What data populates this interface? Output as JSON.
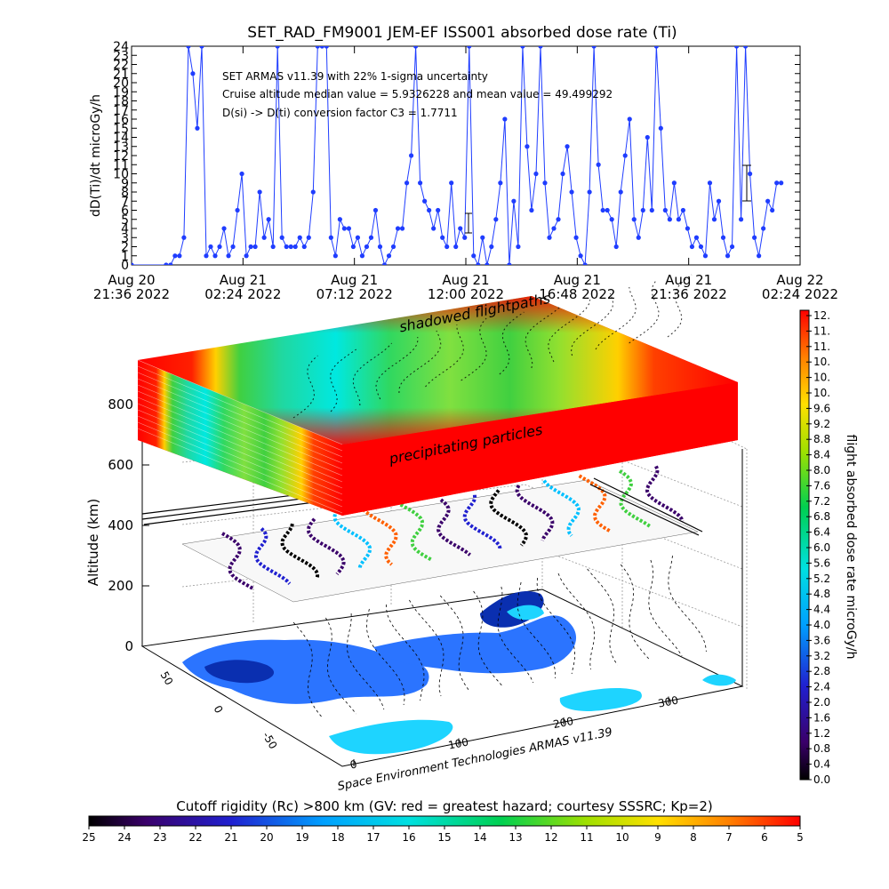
{
  "chart_data": [
    {
      "type": "line",
      "title": "SET_RAD_FM9001  JEM-EF ISS001 absorbed dose rate (Ti)",
      "ylabel": "dD(Ti)/dt microGy/h",
      "ylim": [
        0,
        24
      ],
      "yticks": [
        "0",
        "1",
        "2",
        "3",
        "4",
        "5",
        "6",
        "7",
        "8",
        "9",
        "10",
        "11",
        "12",
        "13",
        "14",
        "15",
        "16",
        "17",
        "18",
        "19",
        "20",
        "21",
        "22",
        "23",
        "24"
      ],
      "xticks": [
        {
          "line1": "Aug 20",
          "line2": "21:36 2022"
        },
        {
          "line1": "Aug 21",
          "line2": "02:24 2022"
        },
        {
          "line1": "Aug 21",
          "line2": "07:12 2022"
        },
        {
          "line1": "Aug 21",
          "line2": "12:00 2022"
        },
        {
          "line1": "Aug 21",
          "line2": "16:48 2022"
        },
        {
          "line1": "Aug 21",
          "line2": "21:36 2022"
        },
        {
          "line1": "Aug 22",
          "line2": "02:24 2022"
        }
      ],
      "annotations": [
        "SET ARMAS v11.39 with 22% 1-sigma uncertainty",
        "Cruise altitude median value = 5.9326228 and mean value = 49.499292",
        "D(si) -> D(ti) conversion factor C3 = 1.7711"
      ],
      "series": [
        {
          "color": "#1f3dff",
          "x": [
            0.0,
            0.31,
            0.35,
            0.39,
            0.43,
            0.47,
            0.51,
            0.55,
            0.59,
            0.63,
            0.67,
            0.71,
            0.75,
            0.79,
            0.83,
            0.87,
            0.91,
            0.95,
            0.99,
            1.03,
            1.07,
            1.11,
            1.15,
            1.19,
            1.23,
            1.27,
            1.31,
            1.35,
            1.39,
            1.43,
            1.47,
            1.51,
            1.55,
            1.59,
            1.63,
            1.67,
            1.71,
            1.75,
            1.79,
            1.83,
            1.87,
            1.91,
            1.95,
            1.99,
            2.03,
            2.07,
            2.11,
            2.15,
            2.19,
            2.23,
            2.27,
            2.31,
            2.35,
            2.39,
            2.43,
            2.47,
            2.51,
            2.55,
            2.59,
            2.63,
            2.67,
            2.71,
            2.75,
            2.79,
            2.83,
            2.87,
            2.91,
            2.95,
            2.99,
            3.03,
            3.07,
            3.11,
            3.15,
            3.19,
            3.23,
            3.27,
            3.31,
            3.35,
            3.39,
            3.43,
            3.47,
            3.51,
            3.55,
            3.59,
            3.63,
            3.67,
            3.71,
            3.75,
            3.79,
            3.83,
            3.87,
            3.91,
            3.95,
            3.99,
            4.03,
            4.07,
            4.11,
            4.15,
            4.19,
            4.23,
            4.27,
            4.31,
            4.35,
            4.39,
            4.43,
            4.47,
            4.51,
            4.55,
            4.59,
            4.63,
            4.67,
            4.71,
            4.75,
            4.79,
            4.83,
            4.87,
            4.91,
            4.95,
            4.99,
            5.03,
            5.07,
            5.11,
            5.15,
            5.19,
            5.23,
            5.27,
            5.31,
            5.35,
            5.39,
            5.43,
            5.47,
            5.51,
            5.55,
            5.59,
            5.63,
            5.67,
            5.71,
            5.75,
            5.79,
            5.83
          ],
          "y": [
            0,
            0,
            0,
            1,
            1,
            3,
            24,
            21,
            15,
            24,
            1,
            2,
            1,
            2,
            4,
            1,
            2,
            6,
            10,
            1,
            2,
            2,
            8,
            3,
            5,
            2,
            24,
            3,
            2,
            2,
            2,
            3,
            2,
            3,
            8,
            24,
            24,
            24,
            3,
            1,
            5,
            4,
            4,
            2,
            3,
            1,
            2,
            3,
            6,
            2,
            0,
            1,
            2,
            4,
            4,
            9,
            12,
            24,
            9,
            7,
            6,
            4,
            6,
            3,
            2,
            9,
            2,
            4,
            3,
            24,
            1,
            0,
            3,
            0,
            2,
            5,
            9,
            16,
            0,
            7,
            2,
            24,
            13,
            6,
            10,
            24,
            9,
            3,
            4,
            5,
            10,
            13,
            8,
            3,
            1,
            0,
            8,
            24,
            11,
            6,
            6,
            5,
            2,
            8,
            12,
            16,
            5,
            3,
            6,
            14,
            6,
            24,
            15,
            6,
            5,
            9,
            5,
            6,
            4,
            2,
            3,
            2,
            1,
            9,
            5,
            7,
            3,
            1,
            2,
            24,
            5,
            24,
            10,
            3,
            1,
            4,
            7,
            6,
            9,
            9
          ]
        }
      ]
    },
    {
      "type": "heatmap",
      "zlabel": "Altitude (km)",
      "zticks": [
        "0",
        "200",
        "400",
        "600",
        "800"
      ],
      "xticks": [
        "0",
        "100",
        "200",
        "300"
      ],
      "yticks": [
        "-50",
        "0",
        "50"
      ],
      "annotations": [
        "shadowed flightpaths",
        "precipitating particles"
      ],
      "credit": "Space Environment Technologies ARMAS v11.39"
    },
    {
      "type": "heatmap",
      "colorbar_vertical": {
        "label": "flight absorbed dose rate microGy/h",
        "ticks": [
          "0.0",
          "0.4",
          "0.8",
          "1.2",
          "1.6",
          "2.0",
          "2.4",
          "2.8",
          "3.2",
          "3.6",
          "4.0",
          "4.4",
          "4.8",
          "5.2",
          "5.6",
          "6.0",
          "6.4",
          "6.8",
          "7.2",
          "7.6",
          "8.0",
          "8.4",
          "8.8",
          "9.2",
          "9.6",
          "10.",
          "10.",
          "10.",
          "11.",
          "11.",
          "12."
        ]
      },
      "colorbar_horizontal": {
        "label": "Cutoff rigidity (Rc) >800 km (GV: red = greatest hazard; courtesy SSSRC; Kp=2)",
        "ticks": [
          "25",
          "24",
          "23",
          "22",
          "21",
          "20",
          "19",
          "18",
          "17",
          "16",
          "15",
          "14",
          "13",
          "12",
          "11",
          "10",
          "9",
          "8",
          "7",
          "6",
          "5"
        ]
      }
    }
  ]
}
